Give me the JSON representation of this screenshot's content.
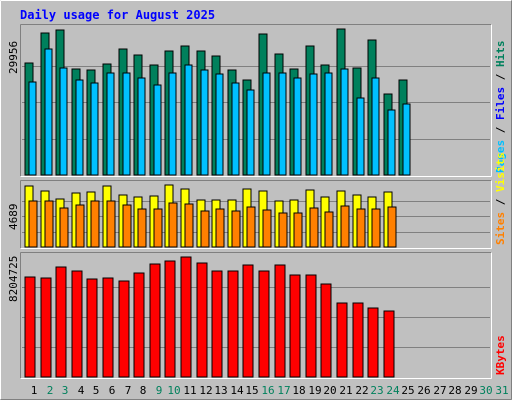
{
  "chart_data": {
    "type": "bar",
    "title": "Daily usage for August 2025",
    "categories": [
      "1",
      "2",
      "3",
      "4",
      "5",
      "6",
      "7",
      "8",
      "9",
      "10",
      "11",
      "12",
      "13",
      "14",
      "15",
      "16",
      "17",
      "18",
      "19",
      "20",
      "21",
      "22",
      "23",
      "24",
      "25",
      "26",
      "27",
      "28",
      "29",
      "30",
      "31"
    ],
    "weekend_days": [
      2,
      3,
      9,
      10,
      16,
      17,
      23,
      24,
      30,
      31
    ],
    "panels": [
      {
        "id": "hits-files-pages",
        "max_label": "29956",
        "max_value": 29956,
        "right_label": [
          "Pages",
          " / ",
          "Files",
          " / ",
          "Hits"
        ],
        "right_label_colors": [
          "#00C0FF",
          "#000000",
          "#0000FF",
          "#000000",
          "#00805C"
        ],
        "series": [
          {
            "name": "Hits",
            "color": "#00805C",
            "values": [
              23000,
              29200,
              29700,
              21700,
              21600,
              22800,
              25800,
              24600,
              22600,
              25400,
              26500,
              25500,
              24400,
              21500,
              19400,
              29000,
              24800,
              21700,
              26400,
              22600,
              30000,
              22000,
              27600,
              16700,
              19500,
              0,
              0,
              0,
              0,
              0,
              0
            ]
          },
          {
            "name": "Files",
            "color": "#0000FF",
            "values": [
              19100,
              25800,
              22000,
              19400,
              18800,
              21000,
              21000,
              19900,
              18500,
              21000,
              22500,
              21600,
              20800,
              18800,
              17400,
              21000,
              21000,
              19800,
              20800,
              21000,
              21800,
              15800,
              19800,
              13400,
              14600,
              0,
              0,
              0,
              0,
              0,
              0
            ]
          },
          {
            "name": "Pages",
            "color": "#00C0FF",
            "values": [
              19100,
              25800,
              22000,
              19400,
              18800,
              21000,
              21000,
              19900,
              18500,
              21000,
              22500,
              21600,
              20800,
              18800,
              17400,
              21000,
              21000,
              19800,
              20800,
              21000,
              21800,
              15800,
              19800,
              13400,
              14600,
              0,
              0,
              0,
              0,
              0,
              0
            ]
          }
        ]
      },
      {
        "id": "visits-sites",
        "max_label": "4689",
        "max_value": 4689,
        "right_label": [
          "Sites",
          " / ",
          "Visits"
        ],
        "right_label_colors": [
          "#FF8000",
          "#000000",
          "#FFFF00"
        ],
        "series": [
          {
            "name": "Visits",
            "color": "#FFFF00",
            "values": [
              4600,
              4250,
              3650,
              4100,
              4150,
              4600,
              3950,
              3800,
              3850,
              4700,
              4400,
              3550,
              3550,
              3550,
              4400,
              4250,
              3450,
              3550,
              4300,
              3750,
              4250,
              3900,
              3800,
              4150,
              0,
              0,
              0,
              0,
              0,
              0,
              0
            ]
          },
          {
            "name": "Sites",
            "color": "#FF8000",
            "values": [
              3500,
              3500,
              2950,
              3200,
              3500,
              3500,
              3150,
              2900,
              2900,
              3300,
              3250,
              2700,
              2900,
              2700,
              3000,
              2800,
              2550,
              2600,
              2950,
              2650,
              3100,
              2850,
              2900,
              3050,
              0,
              0,
              0,
              0,
              0,
              0,
              0
            ]
          }
        ]
      },
      {
        "id": "kbytes",
        "max_label": "8204725",
        "max_value": 8204725,
        "right_label": [
          "KBytes"
        ],
        "right_label_colors": [
          "#FF0000"
        ],
        "series": [
          {
            "name": "KBytes",
            "color": "#FF0000",
            "values": [
              6860000,
              6790000,
              7550000,
              7220000,
              6720000,
              6790000,
              6590000,
              7130000,
              7760000,
              7960000,
              8200000,
              7820000,
              7230000,
              7230000,
              7650000,
              7240000,
              7680000,
              6950000,
              6990000,
              6350000,
              5050000,
              5050000,
              4700000,
              4500000,
              0,
              0,
              0,
              0,
              0,
              0,
              0
            ]
          }
        ]
      }
    ],
    "grid": true,
    "colors": {
      "background": "#C0C0C0",
      "title": "#0000FF",
      "weekday_label": "#000000",
      "weekend_label": "#00805C"
    }
  }
}
